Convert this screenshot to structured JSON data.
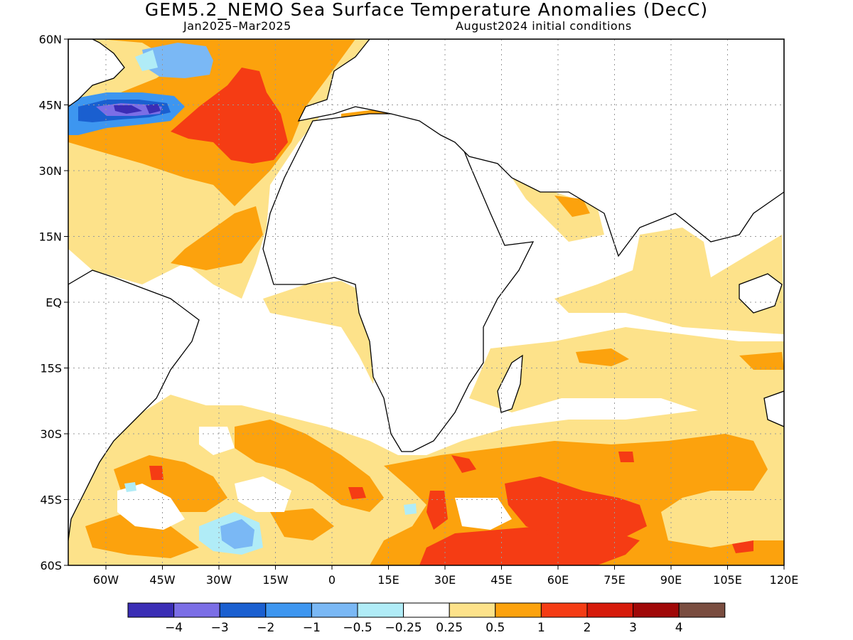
{
  "title": "GEM5.2_NEMO Sea Surface Temperature Anomalies (DecC)",
  "period": "Jan2025–Mar2025",
  "initial_conditions": "August2024 initial conditions",
  "map": {
    "lon_range": [
      -70,
      120
    ],
    "lat_range": [
      -60,
      60
    ],
    "lat_ticks": [
      {
        "value": 60,
        "label": "60N"
      },
      {
        "value": 45,
        "label": "45N"
      },
      {
        "value": 30,
        "label": "30N"
      },
      {
        "value": 15,
        "label": "15N"
      },
      {
        "value": 0,
        "label": "EQ"
      },
      {
        "value": -15,
        "label": "15S"
      },
      {
        "value": -30,
        "label": "30S"
      },
      {
        "value": -45,
        "label": "45S"
      },
      {
        "value": -60,
        "label": "60S"
      }
    ],
    "lon_ticks": [
      {
        "value": -60,
        "label": "60W"
      },
      {
        "value": -45,
        "label": "45W"
      },
      {
        "value": -30,
        "label": "30W"
      },
      {
        "value": -15,
        "label": "15W"
      },
      {
        "value": 0,
        "label": "0"
      },
      {
        "value": 15,
        "label": "15E"
      },
      {
        "value": 30,
        "label": "30E"
      },
      {
        "value": 45,
        "label": "45E"
      },
      {
        "value": 60,
        "label": "60E"
      },
      {
        "value": 75,
        "label": "75E"
      },
      {
        "value": 90,
        "label": "90E"
      },
      {
        "value": 105,
        "label": "105E"
      },
      {
        "value": 120,
        "label": "120E"
      }
    ],
    "grid": "dotted"
  },
  "colorbar": {
    "colors": [
      "#3a2db5",
      "#7b6ee6",
      "#1a5fd0",
      "#3d96f0",
      "#7ab8f5",
      "#b0ecf7",
      "#ffffff",
      "#fde28a",
      "#fca20d",
      "#f53c14",
      "#d61a0a",
      "#a00808",
      "#7a4d40"
    ],
    "labels": [
      "−4",
      "−3",
      "−2",
      "−1",
      "−0.5",
      "−0.25",
      "0.25",
      "0.5",
      "1",
      "2",
      "3",
      "4"
    ]
  }
}
